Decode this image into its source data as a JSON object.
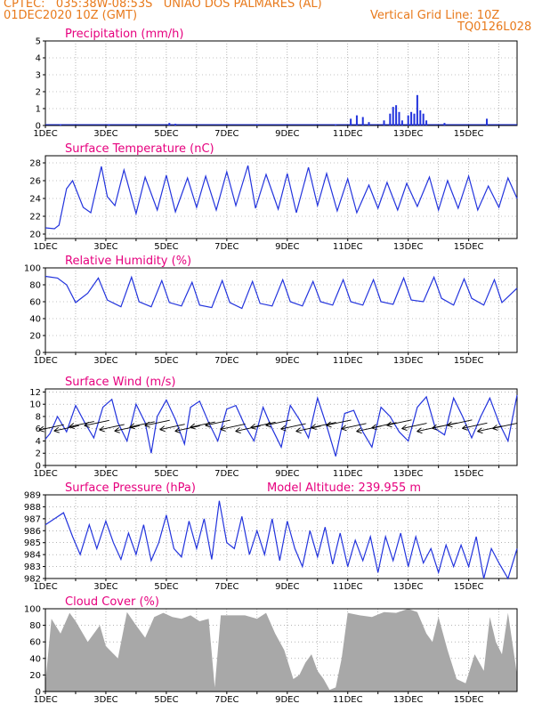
{
  "header": {
    "line1": "CPTEC:   035:38W-08:53S   UNIAO DOS PALMARES (AL)",
    "line2_left": "01DEC2020 10Z (GMT)",
    "line2_right": "Vertical Grid Line: 10Z",
    "line3_right": "TQ0126L028"
  },
  "x_axis": {
    "tick_labels": [
      "1DEC",
      "3DEC",
      "5DEC",
      "7DEC",
      "9DEC",
      "11DEC",
      "13DEC",
      "15DEC"
    ],
    "start_day": 1,
    "end_day": 16.6
  },
  "colors": {
    "line": "#2233dd",
    "title": "#e6007e",
    "header": "#e87a1c",
    "cloud": "#a8a8a8",
    "grid": "#888888"
  },
  "chart_data": [
    {
      "type": "bar",
      "title": "Precipitation (mm/h)",
      "ylim": [
        0,
        5
      ],
      "yticks": [
        0,
        1,
        2,
        3,
        4,
        5
      ],
      "x": [
        1.5,
        3.1,
        5.1,
        5.3,
        8.0,
        10.6,
        11.1,
        11.3,
        11.5,
        11.7,
        12.2,
        12.4,
        12.5,
        12.6,
        12.7,
        12.8,
        13.0,
        13.1,
        13.2,
        13.3,
        13.4,
        13.5,
        13.6,
        14.2,
        15.6
      ],
      "values": [
        0.05,
        0.08,
        0.15,
        0.1,
        0.05,
        0.05,
        0.4,
        0.6,
        0.5,
        0.2,
        0.3,
        0.7,
        1.1,
        1.2,
        0.8,
        0.3,
        0.6,
        0.8,
        0.7,
        1.8,
        0.9,
        0.7,
        0.3,
        0.15,
        0.4
      ]
    },
    {
      "type": "line",
      "title": "Surface Temperature (nC)",
      "ylim": [
        19.5,
        28.8
      ],
      "yticks": [
        20,
        22,
        24,
        26,
        28
      ],
      "x": [
        1.0,
        1.3,
        1.45,
        1.7,
        1.9,
        2.25,
        2.5,
        2.85,
        3.05,
        3.3,
        3.6,
        4.0,
        4.3,
        4.7,
        5.0,
        5.3,
        5.7,
        6.0,
        6.3,
        6.65,
        7.0,
        7.3,
        7.7,
        7.95,
        8.3,
        8.7,
        9.0,
        9.3,
        9.7,
        10.0,
        10.3,
        10.65,
        11.0,
        11.3,
        11.7,
        12.0,
        12.3,
        12.65,
        12.95,
        13.3,
        13.7,
        14.0,
        14.3,
        14.65,
        15.0,
        15.3,
        15.65,
        16.0,
        16.3,
        16.6
      ],
      "values": [
        20.7,
        20.6,
        21.0,
        25.1,
        26.0,
        23.0,
        22.4,
        27.6,
        24.2,
        23.2,
        27.2,
        22.3,
        26.4,
        22.7,
        26.6,
        22.5,
        26.3,
        23.0,
        26.5,
        22.7,
        27.0,
        23.2,
        27.7,
        22.9,
        26.7,
        22.8,
        26.8,
        22.4,
        27.5,
        23.2,
        26.8,
        22.6,
        26.2,
        22.4,
        25.5,
        22.9,
        25.8,
        22.7,
        25.7,
        23.1,
        26.4,
        22.7,
        26.0,
        22.9,
        26.5,
        22.7,
        25.4,
        23.0,
        26.3,
        24.0
      ]
    },
    {
      "type": "line",
      "title": "Relative Humidity (%)",
      "ylim": [
        0,
        100
      ],
      "yticks": [
        0,
        20,
        40,
        60,
        80,
        100
      ],
      "x": [
        1.0,
        1.4,
        1.7,
        2.0,
        2.4,
        2.75,
        3.05,
        3.5,
        3.85,
        4.1,
        4.5,
        4.85,
        5.1,
        5.5,
        5.85,
        6.1,
        6.5,
        6.85,
        7.1,
        7.5,
        7.85,
        8.1,
        8.5,
        8.85,
        9.1,
        9.5,
        9.85,
        10.1,
        10.5,
        10.85,
        11.1,
        11.5,
        11.85,
        12.1,
        12.5,
        12.85,
        13.1,
        13.5,
        13.85,
        14.1,
        14.5,
        14.85,
        15.1,
        15.5,
        15.85,
        16.1,
        16.6
      ],
      "values": [
        90,
        88,
        80,
        59,
        70,
        88,
        62,
        54,
        89,
        60,
        54,
        85,
        59,
        55,
        83,
        56,
        53,
        85,
        59,
        52,
        84,
        58,
        55,
        86,
        60,
        55,
        84,
        60,
        56,
        86,
        60,
        56,
        86,
        60,
        57,
        88,
        62,
        60,
        89,
        64,
        56,
        87,
        64,
        56,
        86,
        59,
        76
      ]
    },
    {
      "type": "line",
      "title": "Surface Wind (m/s)",
      "ylim": [
        0,
        12.5
      ],
      "yticks": [
        0,
        2,
        4,
        6,
        8,
        10,
        12
      ],
      "x": [
        1.0,
        1.15,
        1.4,
        1.7,
        2.0,
        2.3,
        2.6,
        2.9,
        3.2,
        3.4,
        3.7,
        4.0,
        4.3,
        4.5,
        4.7,
        5.0,
        5.3,
        5.6,
        5.8,
        6.1,
        6.4,
        6.7,
        7.0,
        7.3,
        7.6,
        7.9,
        8.2,
        8.5,
        8.8,
        9.1,
        9.4,
        9.7,
        10.0,
        10.3,
        10.6,
        10.9,
        11.2,
        11.5,
        11.8,
        12.1,
        12.4,
        12.7,
        13.0,
        13.3,
        13.6,
        13.9,
        14.2,
        14.5,
        14.8,
        15.1,
        15.4,
        15.7,
        16.0,
        16.3,
        16.6
      ],
      "values": [
        4.3,
        5.2,
        8.0,
        5.5,
        9.8,
        7.0,
        4.5,
        9.5,
        10.8,
        7.0,
        4.0,
        10.0,
        7.0,
        2.0,
        8.0,
        10.7,
        7.5,
        3.5,
        9.5,
        10.5,
        7.0,
        4.0,
        9.2,
        9.8,
        6.5,
        4.0,
        9.5,
        6.0,
        3.0,
        9.8,
        7.5,
        4.5,
        11.0,
        6.5,
        1.5,
        8.5,
        9.0,
        5.5,
        3.0,
        9.5,
        8.0,
        5.5,
        4.0,
        9.5,
        11.2,
        6.0,
        5.0,
        11.0,
        8.0,
        4.5,
        8.0,
        11.0,
        7.0,
        4.0,
        11.5
      ]
    },
    {
      "type": "line",
      "title": "Surface Pressure (hPa)",
      "subtitle": "Model Altitude: 239.955 m",
      "ylim": [
        982,
        989
      ],
      "yticks": [
        982,
        983,
        984,
        985,
        986,
        987,
        988,
        989
      ],
      "x": [
        1.0,
        1.3,
        1.6,
        1.9,
        2.15,
        2.45,
        2.7,
        3.0,
        3.25,
        3.5,
        3.75,
        4.0,
        4.25,
        4.5,
        4.75,
        5.0,
        5.25,
        5.5,
        5.75,
        6.0,
        6.25,
        6.5,
        6.75,
        7.0,
        7.25,
        7.5,
        7.75,
        8.0,
        8.25,
        8.5,
        8.75,
        9.0,
        9.25,
        9.5,
        9.75,
        10.0,
        10.25,
        10.5,
        10.75,
        11.0,
        11.25,
        11.5,
        11.75,
        12.0,
        12.25,
        12.5,
        12.75,
        13.0,
        13.25,
        13.5,
        13.75,
        14.0,
        14.25,
        14.5,
        14.75,
        15.0,
        15.25,
        15.5,
        15.75,
        16.0,
        16.3,
        16.6
      ],
      "values": [
        986.5,
        987.0,
        987.5,
        985.5,
        984.0,
        986.5,
        984.5,
        986.8,
        985.0,
        983.6,
        985.8,
        984.0,
        986.5,
        983.5,
        985.0,
        987.3,
        984.5,
        983.8,
        986.8,
        984.5,
        987.0,
        983.6,
        988.5,
        985.0,
        984.5,
        987.2,
        984.0,
        986.0,
        984.0,
        987.0,
        983.5,
        986.8,
        984.5,
        983.0,
        986.0,
        983.8,
        986.3,
        983.2,
        985.8,
        983.0,
        985.2,
        983.5,
        985.5,
        982.5,
        985.5,
        983.5,
        985.8,
        983.0,
        985.5,
        983.3,
        984.5,
        982.5,
        984.8,
        983.0,
        984.8,
        983.0,
        985.5,
        982.0,
        984.5,
        983.3,
        982.0,
        984.5
      ]
    },
    {
      "type": "area",
      "title": "Cloud Cover (%)",
      "ylim": [
        0,
        100
      ],
      "yticks": [
        0,
        20,
        40,
        60,
        80,
        100
      ],
      "x": [
        1.0,
        1.2,
        1.5,
        1.8,
        2.0,
        2.4,
        2.8,
        3.0,
        3.4,
        3.7,
        4.0,
        4.3,
        4.6,
        4.9,
        5.2,
        5.5,
        5.8,
        6.1,
        6.4,
        6.6,
        6.8,
        7.2,
        7.6,
        8.0,
        8.3,
        8.6,
        8.9,
        9.2,
        9.4,
        9.6,
        9.8,
        10.0,
        10.2,
        10.4,
        10.6,
        10.8,
        11.0,
        11.4,
        11.8,
        12.2,
        12.6,
        13.0,
        13.3,
        13.6,
        13.8,
        14.0,
        14.3,
        14.6,
        14.9,
        15.2,
        15.5,
        15.7,
        15.9,
        16.1,
        16.3,
        16.6
      ],
      "values": [
        10,
        88,
        70,
        95,
        85,
        60,
        80,
        55,
        40,
        96,
        80,
        65,
        90,
        95,
        90,
        88,
        92,
        85,
        88,
        5,
        92,
        92,
        92,
        88,
        95,
        70,
        50,
        15,
        20,
        35,
        45,
        25,
        15,
        2,
        5,
        40,
        95,
        92,
        90,
        96,
        95,
        100,
        96,
        70,
        60,
        90,
        50,
        15,
        10,
        45,
        25,
        90,
        60,
        45,
        95,
        20
      ]
    }
  ]
}
